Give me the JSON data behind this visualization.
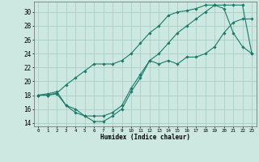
{
  "xlabel": "Humidex (Indice chaleur)",
  "ylabel": "",
  "bg_color": "#cce8e0",
  "grid_color": "#aacfc8",
  "line_color": "#1a7a6a",
  "xlim": [
    -0.5,
    23.5
  ],
  "ylim": [
    13.5,
    31.5
  ],
  "xticks": [
    0,
    1,
    2,
    3,
    4,
    5,
    6,
    7,
    8,
    9,
    10,
    11,
    12,
    13,
    14,
    15,
    16,
    17,
    18,
    19,
    20,
    21,
    22,
    23
  ],
  "yticks": [
    14,
    16,
    18,
    20,
    22,
    24,
    26,
    28,
    30
  ],
  "curve1_x": [
    0,
    1,
    2,
    3,
    4,
    5,
    6,
    7,
    8,
    9,
    10,
    11,
    12,
    13,
    14,
    15,
    16,
    17,
    18,
    19,
    20,
    21,
    22,
    23
  ],
  "curve1_y": [
    18,
    18,
    18.2,
    16.5,
    16,
    15,
    14.2,
    14.2,
    15,
    16,
    18.5,
    20.5,
    23,
    22.5,
    23,
    22.5,
    23.5,
    23.5,
    24,
    25,
    27,
    28.5,
    29,
    29
  ],
  "curve2_x": [
    0,
    1,
    2,
    3,
    4,
    5,
    6,
    7,
    8,
    9,
    10,
    11,
    12,
    13,
    14,
    15,
    16,
    17,
    18,
    19,
    20,
    21,
    22,
    23
  ],
  "curve2_y": [
    18,
    18,
    18.3,
    19.5,
    20.5,
    21.5,
    22.5,
    22.5,
    22.5,
    23,
    24,
    25.5,
    27,
    28,
    29.5,
    30,
    30.2,
    30.5,
    31,
    31,
    30.5,
    27,
    25,
    24
  ],
  "curve3_x": [
    0,
    1,
    2,
    3,
    4,
    5,
    6,
    7,
    8,
    9,
    10,
    11,
    12,
    13,
    14,
    15,
    16,
    17,
    18,
    19,
    20,
    21,
    22,
    23
  ],
  "curve3_y": [
    18,
    18.2,
    18.5,
    16.5,
    15.5,
    15,
    15,
    15,
    15.5,
    16.5,
    19,
    21,
    23,
    24,
    25.5,
    27,
    28,
    29,
    30,
    31,
    31,
    31,
    31,
    24
  ]
}
